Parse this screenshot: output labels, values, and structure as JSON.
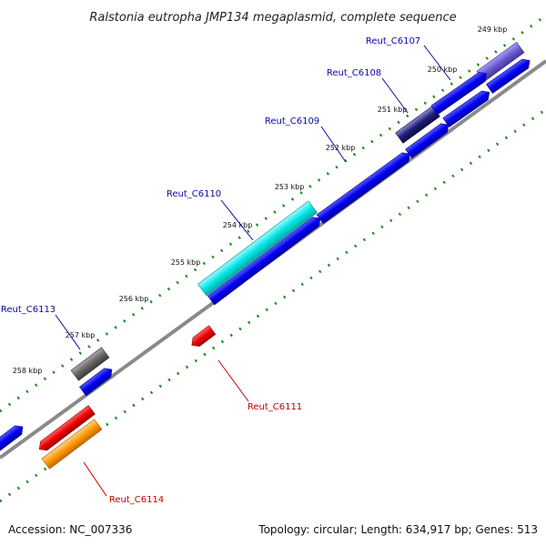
{
  "title": "Ralstonia eutropha JMP134 megaplasmid, complete sequence",
  "footer": {
    "accession": "Accession: NC_007336",
    "summary": "Topology: circular; Length: 634,917 bp; Genes: 513"
  },
  "ticks": [
    "249 kbp",
    "250 kbp",
    "251 kbp",
    "252 kbp",
    "253 kbp",
    "254 kbp",
    "255 kbp",
    "256 kbp",
    "257 kbp",
    "258 kbp"
  ],
  "gene_labels": {
    "c6107": "Reut_C6107",
    "c6108": "Reut_C6108",
    "c6109": "Reut_C6109",
    "c6110": "Reut_C6110",
    "c6111": "Reut_C6111",
    "c6113": "Reut_C6113",
    "c6114": "Reut_C6114"
  },
  "colors": {
    "forward_gene": "#0000ee",
    "reverse_gene": "#ee0000",
    "highlight_cyan": "#00e6e6",
    "highlight_violet": "#6a5acd",
    "highlight_navy": "#1e1e7a",
    "highlight_gray": "#666666",
    "highlight_orange": "#ff9900",
    "backbone": "#8a8a8a",
    "tick_dots": "#1a8a1a",
    "label_blue": "#0a0aa8",
    "label_red": "#c40000"
  }
}
